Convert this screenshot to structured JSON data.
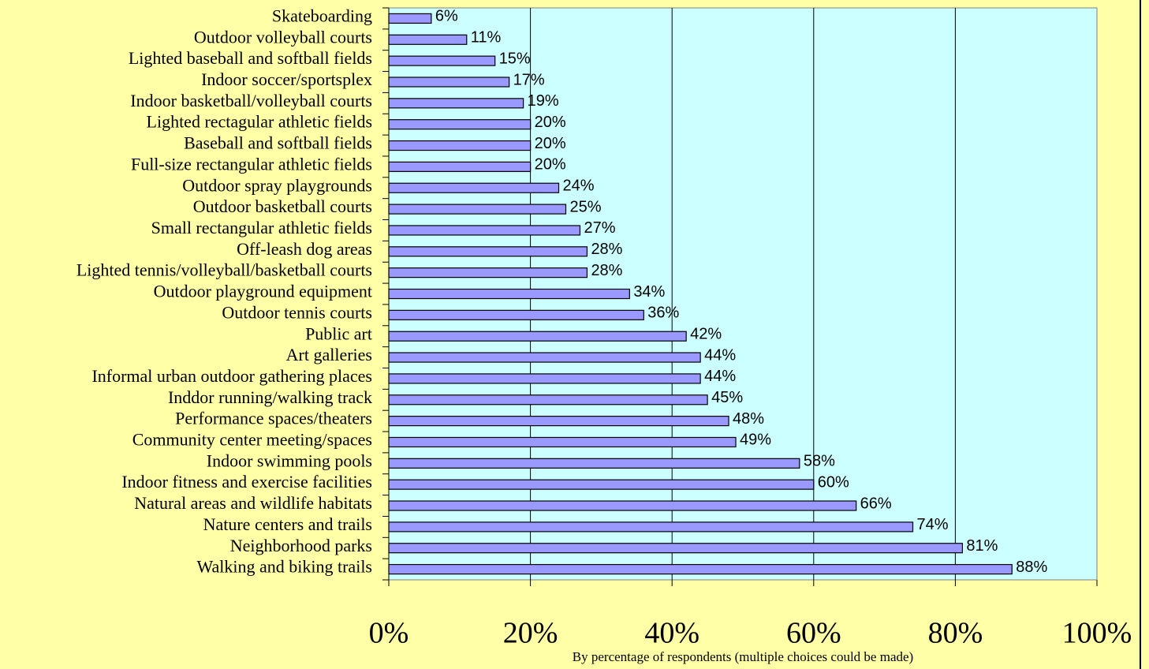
{
  "chart_data": {
    "type": "barh",
    "x_label": "By percentage of respondents (multiple choices could be made)",
    "categories": [
      "Skateboarding",
      "Outdoor volleyball courts",
      "Lighted baseball and softball fields",
      "Indoor soccer/sportsplex",
      "Indoor basketball/volleyball courts",
      "Lighted rectagular athletic fields",
      "Baseball and softball fields",
      "Full-size rectangular athletic fields",
      "Outdoor spray playgrounds",
      "Outdoor basketball courts",
      "Small rectangular athletic fields",
      "Off-leash dog areas",
      "Lighted tennis/volleyball/basketball courts",
      "Outdoor playground equipment",
      "Outdoor tennis courts",
      "Public art",
      "Art galleries",
      "Informal urban outdoor gathering places",
      "Inddor running/walking track",
      "Performance spaces/theaters",
      "Community center meeting/spaces",
      "Indoor swimming pools",
      "Indoor fitness and exercise facilities",
      "Natural areas and wildlife habitats",
      "Nature centers and trails",
      "Neighborhood parks",
      "Walking and biking trails"
    ],
    "values": [
      6,
      11,
      15,
      17,
      19,
      20,
      20,
      20,
      24,
      25,
      27,
      28,
      28,
      34,
      36,
      42,
      44,
      44,
      45,
      48,
      49,
      58,
      60,
      66,
      74,
      81,
      88
    ],
    "value_labels": [
      "6%",
      "11%",
      "15%",
      "17%",
      "19%",
      "20%",
      "20%",
      "20%",
      "24%",
      "25%",
      "27%",
      "28%",
      "28%",
      "34%",
      "36%",
      "42%",
      "44%",
      "44%",
      "45%",
      "48%",
      "49%",
      "58%",
      "60%",
      "66%",
      "74%",
      "81%",
      "88%"
    ],
    "color": "#9999ff",
    "xlim": [
      0,
      100
    ],
    "xticks": [
      {
        "value": 0,
        "label": "0%"
      },
      {
        "value": 20,
        "label": "20%"
      },
      {
        "value": 40,
        "label": "40%"
      },
      {
        "value": 60,
        "label": "60%"
      },
      {
        "value": 80,
        "label": "80%"
      },
      {
        "value": 100,
        "label": "100%"
      }
    ],
    "grid": true
  }
}
